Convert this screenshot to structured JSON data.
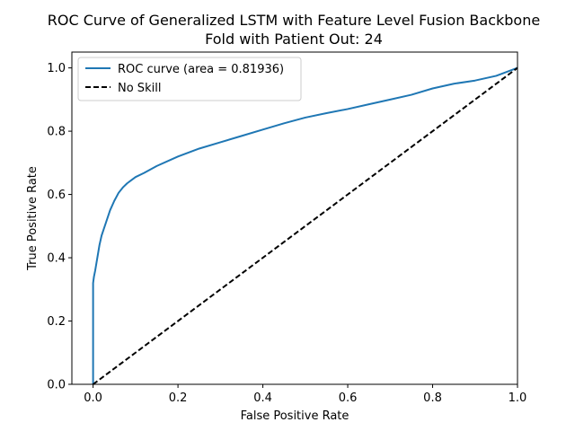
{
  "chart_data": {
    "type": "line",
    "title": "ROC Curve of Generalized LSTM with Feature Level Fusion Backbone",
    "subtitle": "Fold with Patient Out: 24",
    "xlabel": "False Positive Rate",
    "ylabel": "True Positive Rate",
    "xlim": [
      -0.05,
      1.0
    ],
    "ylim": [
      0.0,
      1.05
    ],
    "xticks": [
      0.0,
      0.2,
      0.4,
      0.6,
      0.8,
      1.0
    ],
    "xtick_labels": [
      "0.0",
      "0.2",
      "0.4",
      "0.6",
      "0.8",
      "1.0"
    ],
    "yticks": [
      0.0,
      0.2,
      0.4,
      0.6,
      0.8,
      1.0
    ],
    "ytick_labels": [
      "0.0",
      "0.2",
      "0.4",
      "0.6",
      "0.8",
      "1.0"
    ],
    "grid": false,
    "legend_position": "upper-left",
    "series": [
      {
        "name": "ROC curve (area = 0.81936)",
        "color": "#1f77b4",
        "style": "solid",
        "x": [
          0.0,
          0.0,
          0.002,
          0.005,
          0.01,
          0.015,
          0.02,
          0.03,
          0.04,
          0.05,
          0.06,
          0.07,
          0.08,
          0.09,
          0.1,
          0.12,
          0.15,
          0.2,
          0.25,
          0.3,
          0.35,
          0.4,
          0.45,
          0.5,
          0.55,
          0.6,
          0.65,
          0.7,
          0.75,
          0.8,
          0.85,
          0.9,
          0.95,
          1.0
        ],
        "y": [
          0.0,
          0.32,
          0.34,
          0.36,
          0.4,
          0.44,
          0.47,
          0.51,
          0.55,
          0.58,
          0.605,
          0.622,
          0.635,
          0.645,
          0.655,
          0.668,
          0.69,
          0.72,
          0.745,
          0.765,
          0.785,
          0.805,
          0.825,
          0.843,
          0.857,
          0.87,
          0.885,
          0.9,
          0.915,
          0.935,
          0.95,
          0.96,
          0.975,
          1.0
        ]
      },
      {
        "name": "No Skill",
        "color": "#000000",
        "style": "dashed",
        "x": [
          0.0,
          1.0
        ],
        "y": [
          0.0,
          1.0
        ]
      }
    ]
  }
}
